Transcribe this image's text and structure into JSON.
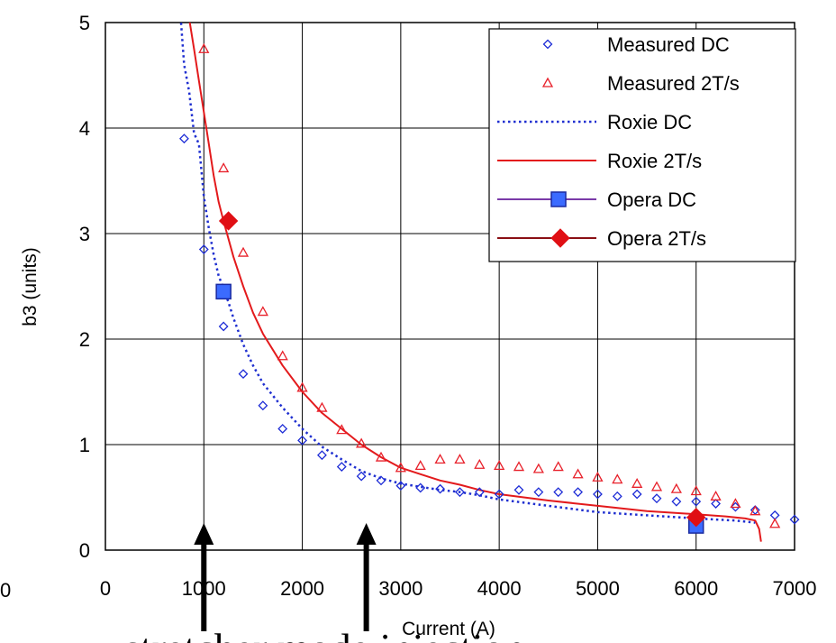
{
  "chart_data": {
    "type": "scatter",
    "xlabel": "Current (A)",
    "ylabel": "b3 (units)",
    "xlim": [
      0,
      7000
    ],
    "ylim": [
      0,
      5
    ],
    "grid": true,
    "legend_position": "top-right",
    "x_ticks": [
      "0",
      "1000",
      "2000",
      "3000",
      "4000",
      "5000",
      "6000",
      "7000"
    ],
    "y_ticks": [
      "0",
      "1",
      "2",
      "3",
      "4",
      "5"
    ],
    "stray_tick": "0",
    "colors": {
      "measured_dc": "#1c2bd6",
      "measured_2t": "#e8202a",
      "roxie_dc": "#1f2fd0",
      "roxie_2t": "#e31a1c",
      "opera_dc": "#3b6bff",
      "opera_2t": "#e00f14"
    },
    "series": [
      {
        "name": "Measured DC",
        "kind": "points",
        "marker": "diamond",
        "x": [
          800,
          1000,
          1200,
          1400,
          1600,
          1800,
          2000,
          2200,
          2400,
          2600,
          2800,
          3000,
          3200,
          3400,
          3600,
          3800,
          4000,
          4200,
          4400,
          4600,
          4800,
          5000,
          5200,
          5400,
          5600,
          5800,
          6000,
          6200,
          6400,
          6600,
          6800,
          7000
        ],
        "y": [
          3.9,
          2.85,
          2.12,
          1.67,
          1.37,
          1.15,
          1.04,
          0.9,
          0.79,
          0.7,
          0.66,
          0.61,
          0.59,
          0.58,
          0.55,
          0.55,
          0.53,
          0.57,
          0.55,
          0.55,
          0.55,
          0.53,
          0.51,
          0.53,
          0.49,
          0.46,
          0.46,
          0.44,
          0.41,
          0.38,
          0.33,
          0.29
        ]
      },
      {
        "name": "Measured 2T/s",
        "kind": "points",
        "marker": "triangle",
        "x": [
          1000,
          1200,
          1400,
          1600,
          1800,
          2000,
          2200,
          2400,
          2600,
          2800,
          3000,
          3200,
          3400,
          3600,
          3800,
          4000,
          4200,
          4400,
          4600,
          4800,
          5000,
          5200,
          5400,
          5600,
          5800,
          6000,
          6200,
          6400,
          6600,
          6800
        ],
        "y": [
          4.75,
          3.62,
          2.82,
          2.26,
          1.84,
          1.54,
          1.35,
          1.14,
          1.01,
          0.88,
          0.78,
          0.8,
          0.86,
          0.86,
          0.81,
          0.8,
          0.79,
          0.77,
          0.79,
          0.72,
          0.69,
          0.67,
          0.63,
          0.6,
          0.58,
          0.56,
          0.51,
          0.44,
          0.37,
          0.25
        ]
      },
      {
        "name": "Roxie DC",
        "kind": "line",
        "dash": "dotted",
        "x": [
          760,
          800,
          850,
          900,
          950,
          1000,
          1050,
          1100,
          1150,
          1200,
          1250,
          1300,
          1400,
          1500,
          1600,
          1800,
          2000,
          2200,
          2400,
          2600,
          2800,
          3000,
          3200,
          3400,
          3600,
          3800,
          4000,
          4500,
          5000,
          5500,
          6000,
          6400,
          6600
        ],
        "y": [
          5.1,
          4.6,
          4.35,
          3.95,
          3.85,
          3.35,
          3.05,
          2.8,
          2.6,
          2.48,
          2.35,
          2.2,
          1.95,
          1.75,
          1.58,
          1.35,
          1.15,
          0.98,
          0.86,
          0.75,
          0.68,
          0.63,
          0.6,
          0.57,
          0.55,
          0.52,
          0.48,
          0.42,
          0.36,
          0.33,
          0.3,
          0.28,
          0.26
        ]
      },
      {
        "name": "Roxie 2T/s",
        "kind": "line",
        "dash": "solid",
        "x": [
          840,
          900,
          950,
          1000,
          1050,
          1100,
          1150,
          1200,
          1250,
          1300,
          1400,
          1500,
          1600,
          1800,
          2000,
          2200,
          2400,
          2600,
          2800,
          3000,
          3200,
          3400,
          3600,
          3800,
          4000,
          4500,
          5000,
          5500,
          6000,
          6300,
          6500,
          6600,
          6640,
          6660
        ],
        "y": [
          5.1,
          4.75,
          4.45,
          4.15,
          3.85,
          3.55,
          3.3,
          3.12,
          2.95,
          2.78,
          2.5,
          2.25,
          2.05,
          1.75,
          1.5,
          1.3,
          1.15,
          1.0,
          0.88,
          0.78,
          0.72,
          0.66,
          0.62,
          0.57,
          0.53,
          0.47,
          0.42,
          0.37,
          0.34,
          0.32,
          0.3,
          0.28,
          0.2,
          0.08
        ]
      },
      {
        "name": "Opera DC",
        "kind": "points",
        "marker": "square",
        "x": [
          1200,
          6000
        ],
        "y": [
          2.45,
          0.23
        ]
      },
      {
        "name": "Opera 2T/s",
        "kind": "points",
        "marker": "bigdiamond",
        "x": [
          1250,
          6000
        ],
        "y": [
          3.12,
          0.31
        ]
      }
    ],
    "annotations": {
      "arrows_at_x": [
        1000,
        2650
      ],
      "caption": "stretcher mode injection"
    }
  }
}
